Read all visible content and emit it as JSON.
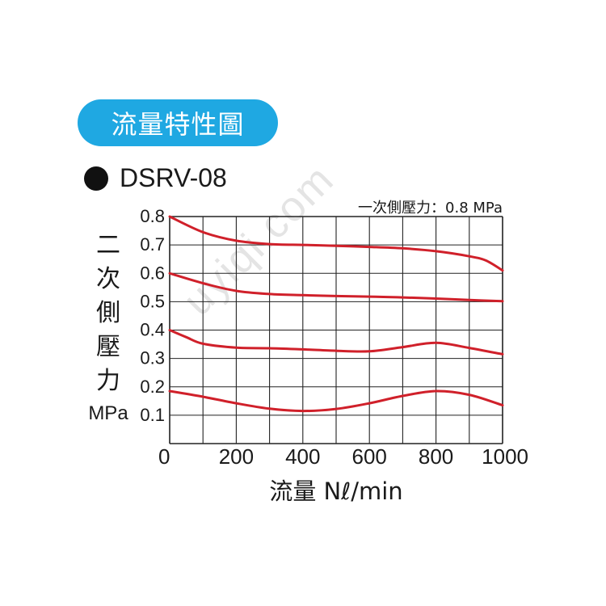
{
  "header": {
    "title": "流量特性圖",
    "model": "DSRV-08",
    "condition": "一次側壓力：0.8 MPa"
  },
  "watermark": "uyiqi.com",
  "chart_data": {
    "type": "line",
    "title": "DSRV-08",
    "subtitle": "一次側壓力：0.8 MPa",
    "xlabel": "流量 Nℓ/min",
    "ylabel_chars": [
      "二",
      "次",
      "側",
      "壓",
      "力"
    ],
    "ylabel_unit": "MPa",
    "xlim": [
      0,
      1000
    ],
    "ylim": [
      0,
      0.8
    ],
    "x_ticks": [
      0,
      200,
      400,
      600,
      800,
      1000
    ],
    "y_ticks": [
      0.1,
      0.2,
      0.3,
      0.4,
      0.5,
      0.6,
      0.7,
      0.8
    ],
    "x_grid_step": 100,
    "y_grid_step": 0.1,
    "grid": true,
    "line_color": "#d0202a",
    "series": [
      {
        "x": [
          0,
          100,
          200,
          300,
          400,
          500,
          600,
          700,
          800,
          900,
          950,
          1000
        ],
        "y": [
          0.8,
          0.745,
          0.715,
          0.703,
          0.7,
          0.697,
          0.693,
          0.688,
          0.678,
          0.66,
          0.645,
          0.61
        ]
      },
      {
        "x": [
          0,
          100,
          200,
          300,
          400,
          500,
          600,
          700,
          800,
          900,
          1000
        ],
        "y": [
          0.6,
          0.565,
          0.538,
          0.527,
          0.523,
          0.52,
          0.518,
          0.515,
          0.511,
          0.506,
          0.502
        ]
      },
      {
        "x": [
          0,
          50,
          100,
          200,
          300,
          400,
          500,
          600,
          700,
          800,
          900,
          1000
        ],
        "y": [
          0.4,
          0.375,
          0.352,
          0.338,
          0.336,
          0.332,
          0.327,
          0.325,
          0.34,
          0.355,
          0.337,
          0.315
        ]
      },
      {
        "x": [
          0,
          100,
          200,
          300,
          400,
          500,
          600,
          700,
          800,
          900,
          1000
        ],
        "y": [
          0.185,
          0.165,
          0.142,
          0.123,
          0.115,
          0.122,
          0.142,
          0.168,
          0.185,
          0.172,
          0.135
        ]
      }
    ]
  }
}
